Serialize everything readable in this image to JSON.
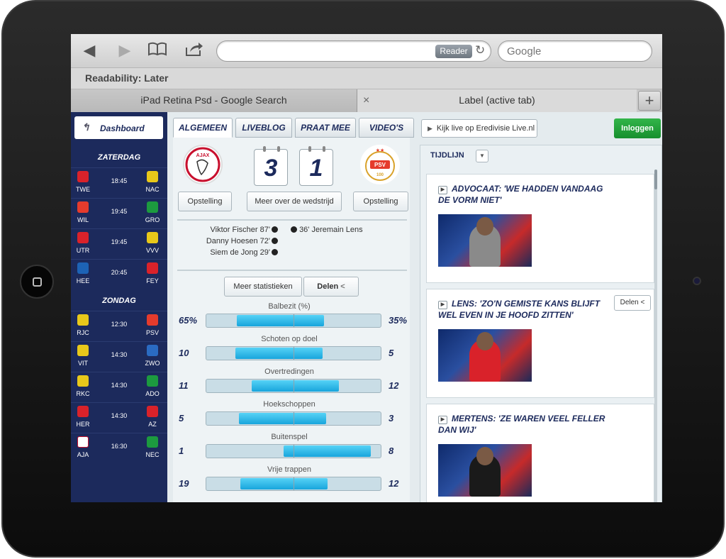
{
  "browser": {
    "reader_label": "Reader",
    "search_placeholder": "Google",
    "bookmark": "Readability: Later",
    "tab_inactive": "iPad Retina Psd - Google Search",
    "tab_active": "Label (active tab)",
    "tab_close": "×",
    "tab_add": "+"
  },
  "sidebar": {
    "dashboard_label": "Dashboard",
    "days": [
      {
        "label": "ZATERDAG",
        "matches": [
          {
            "home": "TWE",
            "time": "18:45",
            "away": "NAC",
            "home_color": "#d9222a",
            "away_color": "#e8c81a"
          },
          {
            "home": "WIL",
            "time": "19:45",
            "away": "GRO",
            "home_color": "#e53b2c",
            "away_color": "#1c9a3f"
          },
          {
            "home": "UTR",
            "time": "19:45",
            "away": "VVV",
            "home_color": "#d9222a",
            "away_color": "#e8c81a"
          },
          {
            "home": "HEE",
            "time": "20:45",
            "away": "FEY",
            "home_color": "#1d63b5",
            "away_color": "#d9222a"
          }
        ]
      },
      {
        "label": "ZONDAG",
        "matches": [
          {
            "home": "RJC",
            "time": "12:30",
            "away": "PSV",
            "home_color": "#e8c81a",
            "away_color": "#e53b2c"
          },
          {
            "home": "VIT",
            "time": "14:30",
            "away": "ZWO",
            "home_color": "#e8c81a",
            "away_color": "#2a6bc2"
          },
          {
            "home": "RKC",
            "time": "14:30",
            "away": "ADO",
            "home_color": "#e8c81a",
            "away_color": "#1c9a3f"
          },
          {
            "home": "HER",
            "time": "14:30",
            "away": "AZ",
            "home_color": "#d9222a",
            "away_color": "#d9222a"
          },
          {
            "home": "AJA",
            "time": "16:30",
            "away": "NEC",
            "home_color": "#ffffff",
            "away_color": "#1c9a3f"
          }
        ]
      }
    ]
  },
  "match": {
    "tabs": [
      "ALGEMEEN",
      "LIVEBLOG",
      "PRAAT MEE",
      "VIDEO'S"
    ],
    "home_score": "3",
    "away_score": "1",
    "home_crest_text": "AJAX",
    "away_crest_text": "PSV",
    "away_crest_year": "100",
    "btn_lineup_home": "Opstelling",
    "btn_more": "Meer over de wedstrijd",
    "btn_lineup_away": "Opstelling",
    "home_scorers": [
      {
        "name": "Viktor Fischer",
        "minute": "87'"
      },
      {
        "name": "Danny Hoesen",
        "minute": "72'"
      },
      {
        "name": "Siem de Jong",
        "minute": "29'"
      }
    ],
    "away_scorer": {
      "name": "Jeremain Lens",
      "minute": "36'"
    },
    "btn_stats": "Meer statistieken",
    "btn_share": "Delen",
    "stats": [
      {
        "label": "Balbezit (%)",
        "home": "65%",
        "away": "35%",
        "home_share": 0.65
      },
      {
        "label": "Schoten op doel",
        "home": "10",
        "away": "5",
        "home_share": 0.667
      },
      {
        "label": "Overtredingen",
        "home": "11",
        "away": "12",
        "home_share": 0.478
      },
      {
        "label": "Hoekschoppen",
        "home": "5",
        "away": "3",
        "home_share": 0.625
      },
      {
        "label": "Buitenspel",
        "home": "1",
        "away": "8",
        "home_share": 0.111
      },
      {
        "label": "Vrije trappen",
        "home": "19",
        "away": "12",
        "home_share": 0.613
      }
    ]
  },
  "right": {
    "live_label": "Kijk live op Eredivisie Live.nl",
    "login_label": "Inloggen",
    "timeline_label": "TIJDLIJN",
    "share_label": "Delen",
    "cards": [
      {
        "title": "ADVOCAAT: 'WE HADDEN VANDAAG DE VORM NIET'",
        "shirt": "#8a8a8a"
      },
      {
        "title": "LENS: 'ZO'N GEMISTE KANS BLIJFT WEL EVEN IN JE HOOFD ZITTEN'",
        "shirt": "#d9222a"
      },
      {
        "title": "MERTENS: 'ZE WAREN VEEL FELLER DAN WIJ'",
        "shirt": "#1a1a1a"
      }
    ]
  }
}
